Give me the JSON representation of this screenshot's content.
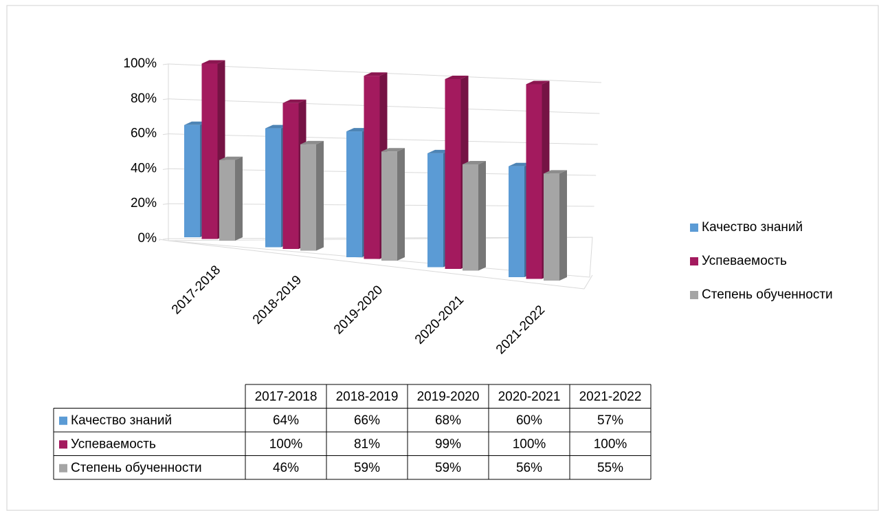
{
  "chart_data": {
    "type": "bar",
    "categories": [
      "2017-2018",
      "2018-2019",
      "2019-2020",
      "2020-2021",
      "2021-2022"
    ],
    "series": [
      {
        "name": "Качество знаний",
        "color": "#5b9bd5",
        "values": [
          64,
          66,
          68,
          60,
          57
        ],
        "value_labels": [
          "64%",
          "66%",
          "68%",
          "60%",
          "57%"
        ]
      },
      {
        "name": "Успеваемость",
        "color": "#a31a5e",
        "values": [
          100,
          81,
          99,
          100,
          100
        ],
        "value_labels": [
          "100%",
          "81%",
          "99%",
          "100%",
          "100%"
        ]
      },
      {
        "name": "Степень обученности",
        "color": "#a5a5a5",
        "values": [
          46,
          59,
          59,
          56,
          55
        ],
        "value_labels": [
          "46%",
          "59%",
          "59%",
          "56%",
          "55%"
        ]
      }
    ],
    "ylim": [
      0,
      100
    ],
    "yticks": [
      {
        "value": 0,
        "label": "0%"
      },
      {
        "value": 20,
        "label": "20%"
      },
      {
        "value": 40,
        "label": "40%"
      },
      {
        "value": 60,
        "label": "60%"
      },
      {
        "value": 80,
        "label": "80%"
      },
      {
        "value": 100,
        "label": "100%"
      }
    ],
    "grid": true,
    "legend": "right"
  }
}
